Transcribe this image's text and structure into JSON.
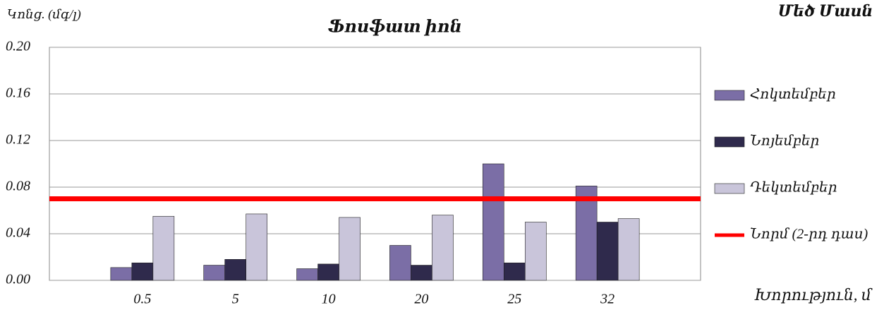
{
  "chart_data": {
    "type": "bar",
    "title": "Ֆոսֆատ իոն",
    "subtitle": "Մեծ Մասն",
    "y_label": "Կոնց. (մգ/լ)",
    "x_label": "Խորություն, մ",
    "categories": [
      "0.5",
      "5",
      "10",
      "20",
      "25",
      "32"
    ],
    "series": [
      {
        "name": "Հոկտեմբեր",
        "color": "#7b6ea6",
        "values": [
          0.011,
          0.013,
          0.01,
          0.03,
          0.1,
          0.081
        ]
      },
      {
        "name": "Նոյեմբեր",
        "color": "#2f2a4c",
        "values": [
          0.015,
          0.018,
          0.014,
          0.013,
          0.015,
          0.05
        ]
      },
      {
        "name": "Դեկտեմբեր",
        "color": "#c9c5da",
        "values": [
          0.055,
          0.057,
          0.054,
          0.056,
          0.05,
          0.053
        ]
      }
    ],
    "norm": {
      "name": "Նորմ (2-րդ դաս)",
      "color": "#ff0000",
      "value": 0.07
    },
    "ylim": [
      0,
      0.2
    ],
    "yticks": [
      {
        "value": 0,
        "label": "0.00"
      },
      {
        "value": 0.04,
        "label": "0.04"
      },
      {
        "value": 0.08,
        "label": "0.08"
      },
      {
        "value": 0.12,
        "label": "0.12"
      },
      {
        "value": 0.16,
        "label": "0.16"
      },
      {
        "value": 0.2,
        "label": "0.20"
      }
    ],
    "grid": true,
    "legend": "right"
  }
}
